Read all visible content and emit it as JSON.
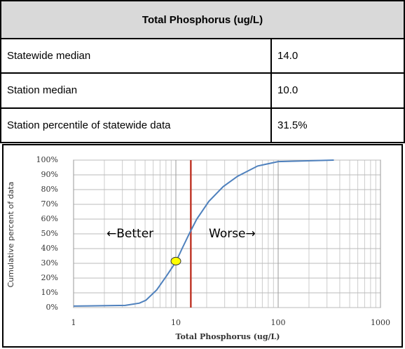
{
  "table": {
    "header": "Total Phosphorus (ug/L)",
    "rows": [
      [
        "Statewide median",
        "14.0"
      ],
      [
        "Station median",
        "10.0"
      ],
      [
        "Station percentile of statewide data",
        "31.5%"
      ]
    ]
  },
  "chart_data": {
    "type": "line",
    "xlabel": "Total Phosphorus (ug/L)",
    "ylabel": "Cumulative percent of data",
    "log_x": true,
    "grid": true,
    "minor_grid": true,
    "xlim": [
      1,
      1000
    ],
    "xticks": [
      1,
      10,
      100,
      1000
    ],
    "ylim": [
      0,
      100
    ],
    "yticks": [
      {
        "value": 0,
        "label": "0%"
      },
      {
        "value": 10,
        "label": "10%"
      },
      {
        "value": 20,
        "label": "20%"
      },
      {
        "value": 30,
        "label": "30%"
      },
      {
        "value": 40,
        "label": "40%"
      },
      {
        "value": 50,
        "label": "50%"
      },
      {
        "value": 60,
        "label": "60%"
      },
      {
        "value": 70,
        "label": "70%"
      },
      {
        "value": 80,
        "label": "80%"
      },
      {
        "value": 90,
        "label": "90%"
      },
      {
        "value": 100,
        "label": "100%"
      }
    ],
    "x": [
      1,
      3.2,
      4.4,
      5.1,
      6.5,
      8.2,
      10,
      11.5,
      13.5,
      16,
      21,
      29,
      40,
      63,
      100,
      350
    ],
    "series": [
      {
        "color": "#4f81bd",
        "values": [
          1,
          1.5,
          3,
          5,
          12,
          22,
          31,
          40,
          50,
          60,
          72,
          82,
          89,
          96,
          99,
          100
        ]
      }
    ],
    "reference_line": {
      "x": 14,
      "color": "#c0392b"
    },
    "point": {
      "x": 10,
      "y": 31.5,
      "color": "#ffff00"
    },
    "annotations": [
      "←Better",
      "Worse→"
    ]
  }
}
